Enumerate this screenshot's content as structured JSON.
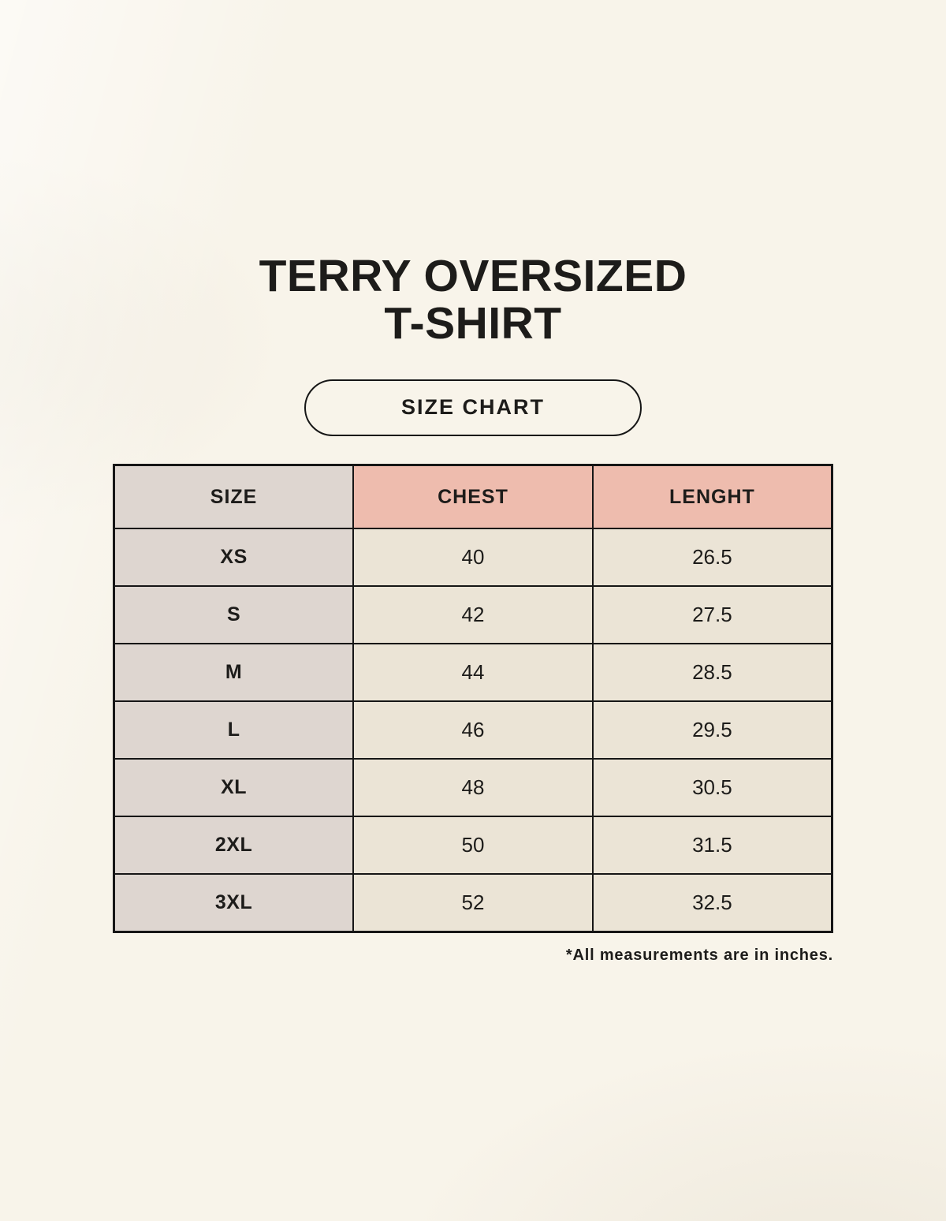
{
  "page": {
    "title_line1": "TERRY OVERSIZED",
    "title_line2": "T-SHIRT",
    "size_chart_badge": "SIZE CHART",
    "footnote": "*All measurements are in inches."
  },
  "table": {
    "columns": [
      "SIZE",
      "CHEST",
      "LENGHT"
    ],
    "rows": [
      {
        "size": "XS",
        "chest": "40",
        "length": "26.5"
      },
      {
        "size": "S",
        "chest": "42",
        "length": "27.5"
      },
      {
        "size": "M",
        "chest": "44",
        "length": "28.5"
      },
      {
        "size": "L",
        "chest": "46",
        "length": "29.5"
      },
      {
        "size": "XL",
        "chest": "48",
        "length": "30.5"
      },
      {
        "size": "2XL",
        "chest": "50",
        "length": "31.5"
      },
      {
        "size": "3XL",
        "chest": "52",
        "length": "32.5"
      }
    ]
  },
  "colors": {
    "background": "#f8f4ea",
    "size_column_bg": "#ded6d0",
    "header_accent_bg": "#eebcae",
    "value_cell_bg": "#ebe4d6",
    "border": "#161616",
    "text": "#1d1c1a"
  }
}
